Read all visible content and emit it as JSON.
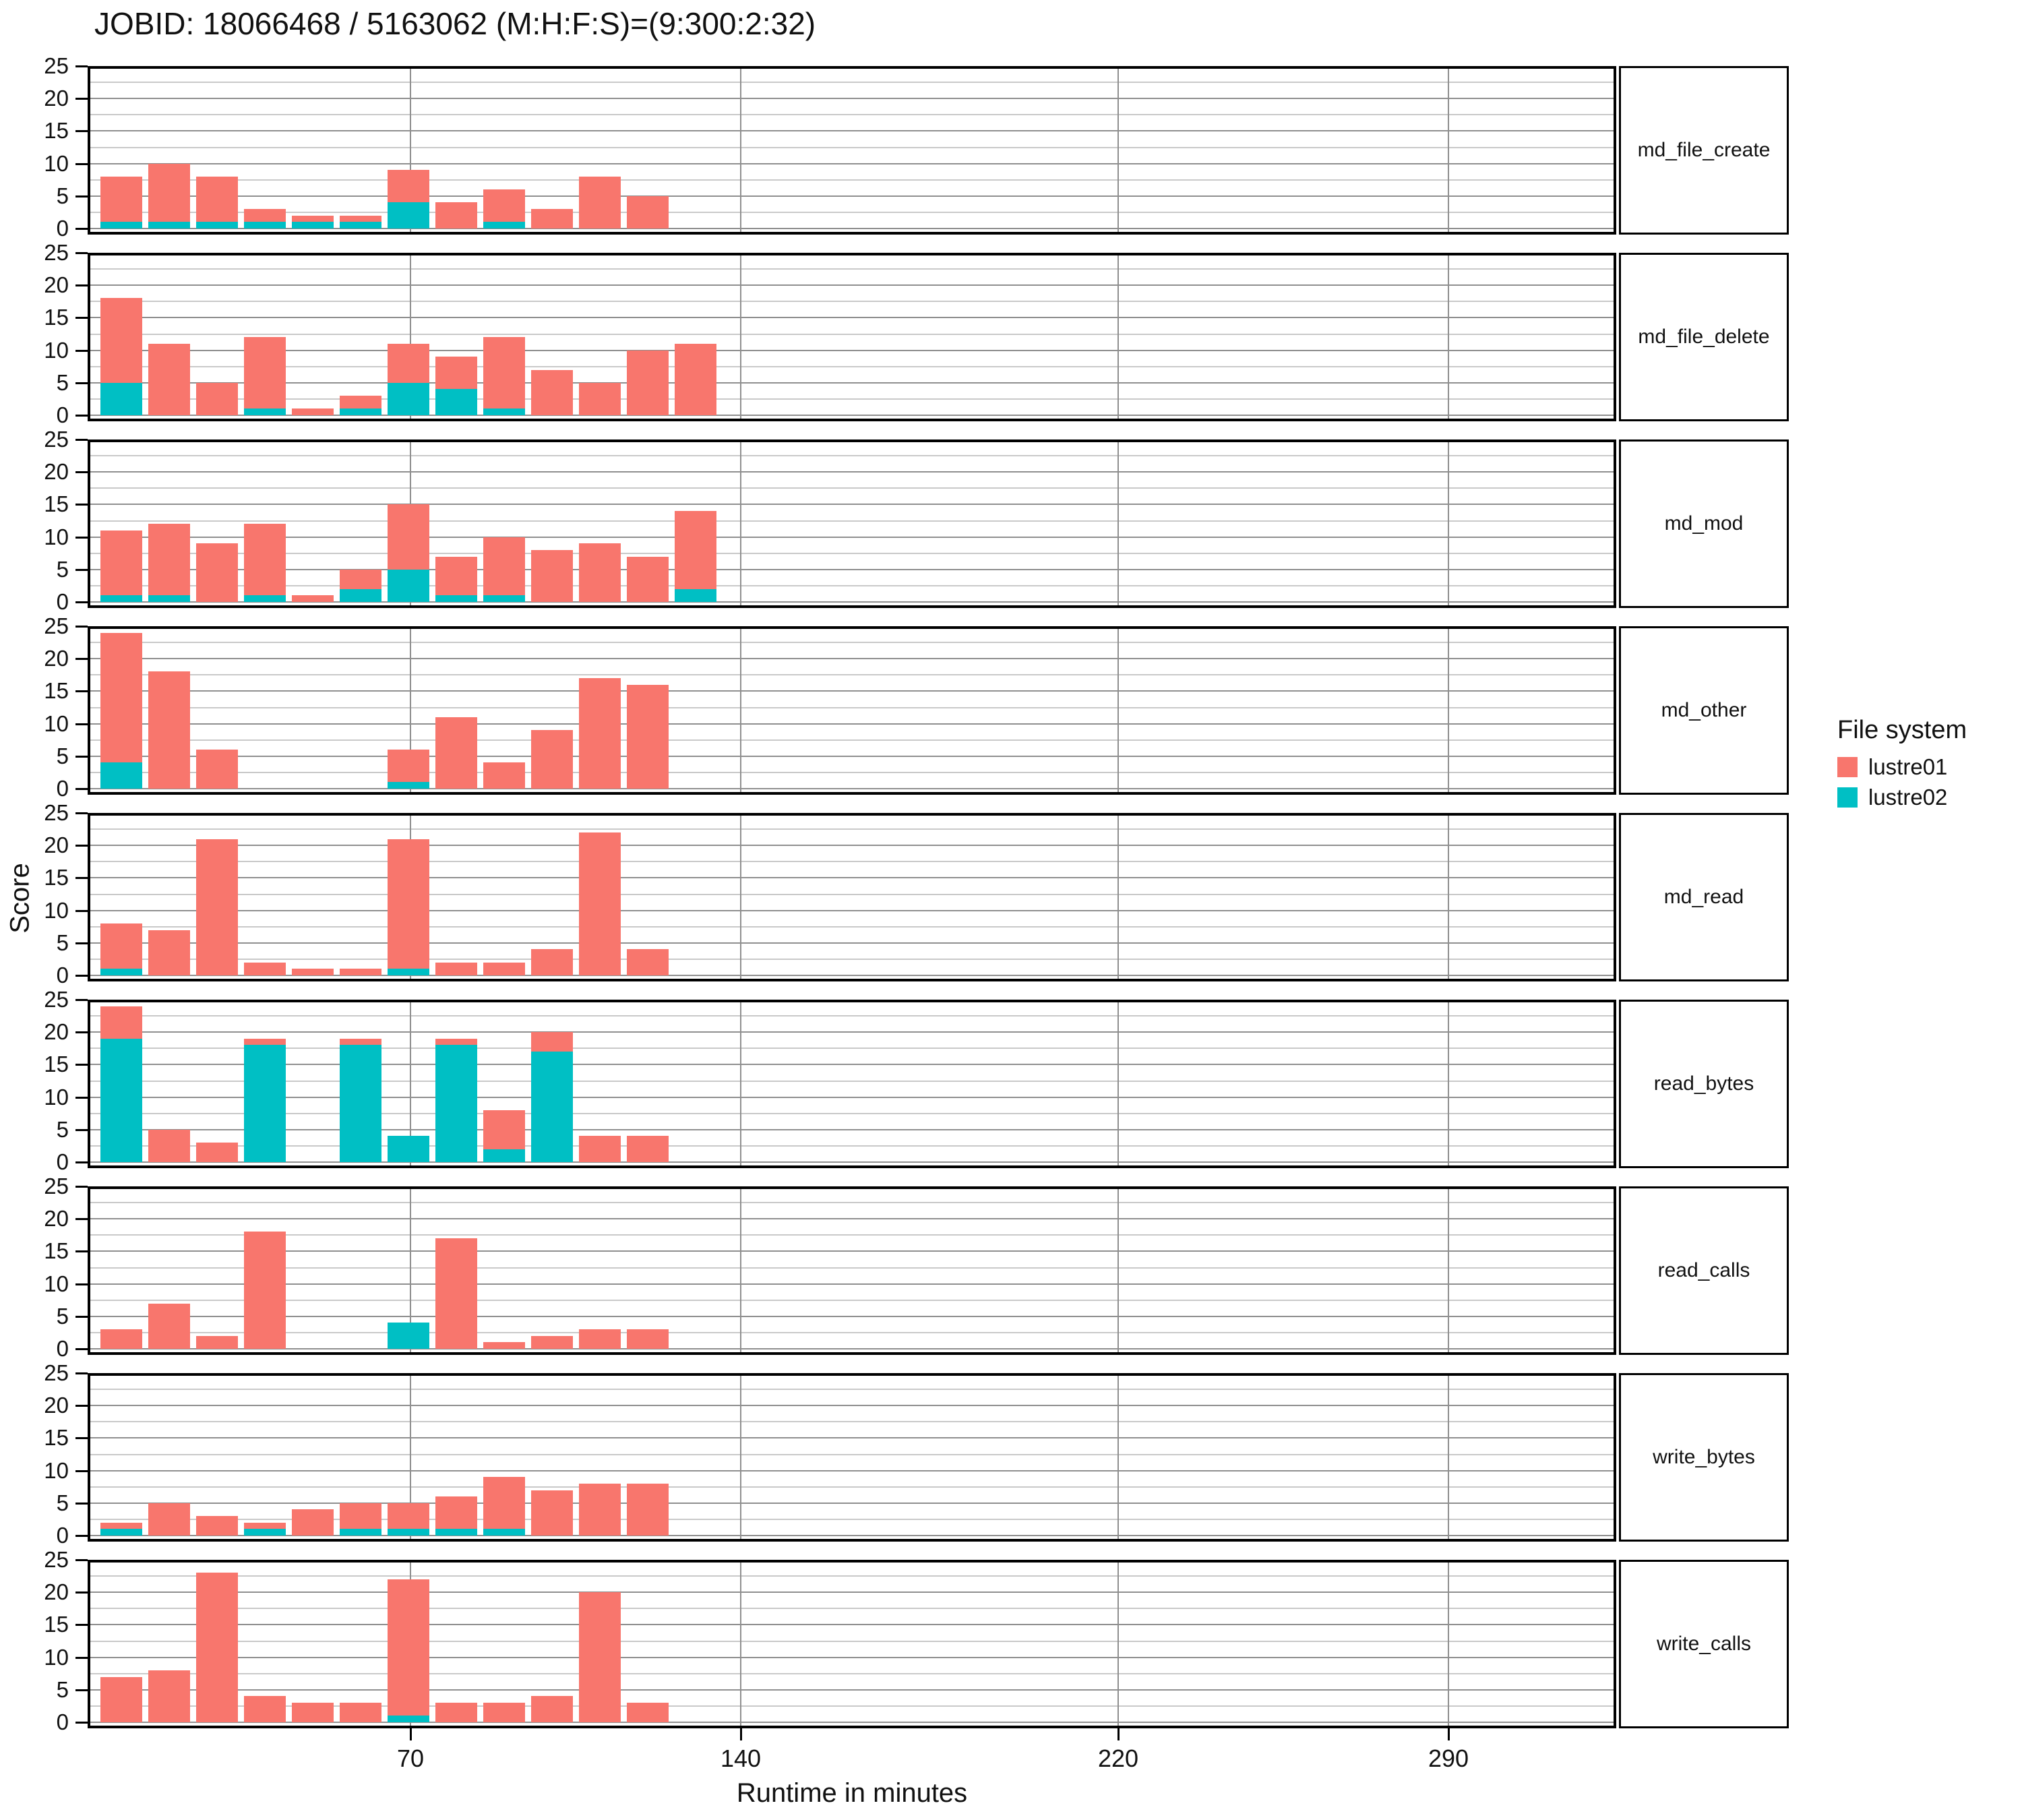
{
  "title": "JOBID: 18066468 / 5163062 (M:H:F:S)=(9:300:2:32)",
  "axes": {
    "y_label": "Score",
    "x_label": "Runtime in minutes",
    "y_ticks": [
      0,
      5,
      10,
      15,
      20,
      25
    ],
    "y_minor_ticks": [
      2.5,
      7.5,
      12.5,
      17.5,
      22.5
    ],
    "x_ticks": [
      70,
      140,
      220,
      290
    ],
    "y_range": [
      0,
      25
    ]
  },
  "legend": {
    "title": "File system",
    "items": [
      {
        "label": "lustre01",
        "color": "#F8766D"
      },
      {
        "label": "lustre02",
        "color": "#00BFC4"
      }
    ]
  },
  "colors": {
    "lustre01": "#F8766D",
    "lustre02": "#00BFC4",
    "grid_major": "#8f8f8f",
    "grid_minor": "#c9c9c9",
    "panel_border": "#000000"
  },
  "chart_data": {
    "type": "bar",
    "stacked": true,
    "title": "JOBID: 18066468 / 5163062 (M:H:F:S)=(9:300:2:32)",
    "xlabel": "Runtime in minutes",
    "ylabel": "Score",
    "ylim": [
      0,
      25
    ],
    "x_ticks": [
      70,
      140,
      220,
      290
    ],
    "y_ticks": [
      0,
      5,
      10,
      15,
      20,
      25
    ],
    "grid": "major-and-minor-horizontal, major-vertical",
    "legend_position": "right",
    "legend_title": "File system",
    "series_names": [
      "lustre01",
      "lustre02"
    ],
    "series_colors": {
      "lustre01": "#F8766D",
      "lustre02": "#00BFC4"
    },
    "bin_centers_minutes": [
      10,
      20,
      30,
      40,
      50,
      60,
      70,
      80,
      90,
      100,
      110,
      120,
      130
    ],
    "bar_width_minutes": 9,
    "facets": [
      {
        "label": "md_file_create",
        "series": [
          {
            "name": "lustre02",
            "values": [
              1,
              1,
              1,
              1,
              1,
              1,
              4,
              0,
              1,
              0,
              0,
              0,
              0
            ]
          },
          {
            "name": "lustre01",
            "values": [
              7,
              9,
              7,
              2,
              1,
              1,
              5,
              4,
              5,
              3,
              8,
              5,
              0
            ]
          }
        ]
      },
      {
        "label": "md_file_delete",
        "series": [
          {
            "name": "lustre02",
            "values": [
              5,
              0,
              0,
              1,
              0,
              1,
              5,
              4,
              1,
              0,
              0,
              0,
              0
            ]
          },
          {
            "name": "lustre01",
            "values": [
              13,
              11,
              5,
              11,
              1,
              2,
              6,
              5,
              11,
              7,
              5,
              10,
              11
            ]
          }
        ]
      },
      {
        "label": "md_mod",
        "series": [
          {
            "name": "lustre02",
            "values": [
              1,
              1,
              0,
              1,
              0,
              2,
              5,
              1,
              1,
              0,
              0,
              0,
              2
            ]
          },
          {
            "name": "lustre01",
            "values": [
              10,
              11,
              9,
              11,
              1,
              3,
              10,
              6,
              9,
              8,
              9,
              7,
              12
            ]
          }
        ]
      },
      {
        "label": "md_other",
        "series": [
          {
            "name": "lustre02",
            "values": [
              4,
              0,
              0,
              0,
              0,
              0,
              1,
              0,
              0,
              0,
              0,
              0,
              0
            ]
          },
          {
            "name": "lustre01",
            "values": [
              20,
              18,
              6,
              0,
              0,
              0,
              5,
              11,
              4,
              9,
              17,
              16,
              0
            ]
          }
        ]
      },
      {
        "label": "md_read",
        "series": [
          {
            "name": "lustre02",
            "values": [
              1,
              0,
              0,
              0,
              0,
              0,
              1,
              0,
              0,
              0,
              0,
              0,
              0
            ]
          },
          {
            "name": "lustre01",
            "values": [
              7,
              7,
              21,
              2,
              1,
              1,
              20,
              2,
              2,
              4,
              22,
              4,
              0
            ]
          }
        ]
      },
      {
        "label": "read_bytes",
        "series": [
          {
            "name": "lustre02",
            "values": [
              19,
              0,
              0,
              18,
              0,
              18,
              4,
              18,
              2,
              17,
              0,
              0,
              0
            ]
          },
          {
            "name": "lustre01",
            "values": [
              5,
              5,
              3,
              1,
              0,
              1,
              0,
              1,
              6,
              3,
              4,
              4,
              0
            ]
          }
        ]
      },
      {
        "label": "read_calls",
        "series": [
          {
            "name": "lustre02",
            "values": [
              0,
              0,
              0,
              0,
              0,
              0,
              4,
              0,
              0,
              0,
              0,
              0,
              0
            ]
          },
          {
            "name": "lustre01",
            "values": [
              3,
              7,
              2,
              18,
              0,
              0,
              0,
              17,
              1,
              2,
              3,
              3,
              0
            ]
          }
        ]
      },
      {
        "label": "write_bytes",
        "series": [
          {
            "name": "lustre02",
            "values": [
              1,
              0,
              0,
              1,
              0,
              1,
              1,
              1,
              1,
              0,
              0,
              0,
              0
            ]
          },
          {
            "name": "lustre01",
            "values": [
              1,
              5,
              3,
              1,
              4,
              4,
              4,
              5,
              8,
              7,
              8,
              8,
              0
            ]
          }
        ]
      },
      {
        "label": "write_calls",
        "series": [
          {
            "name": "lustre02",
            "values": [
              0,
              0,
              0,
              0,
              0,
              0,
              1,
              0,
              0,
              0,
              0,
              0,
              0
            ]
          },
          {
            "name": "lustre01",
            "values": [
              7,
              8,
              23,
              4,
              3,
              3,
              21,
              3,
              3,
              4,
              20,
              3,
              0
            ]
          }
        ]
      }
    ]
  }
}
